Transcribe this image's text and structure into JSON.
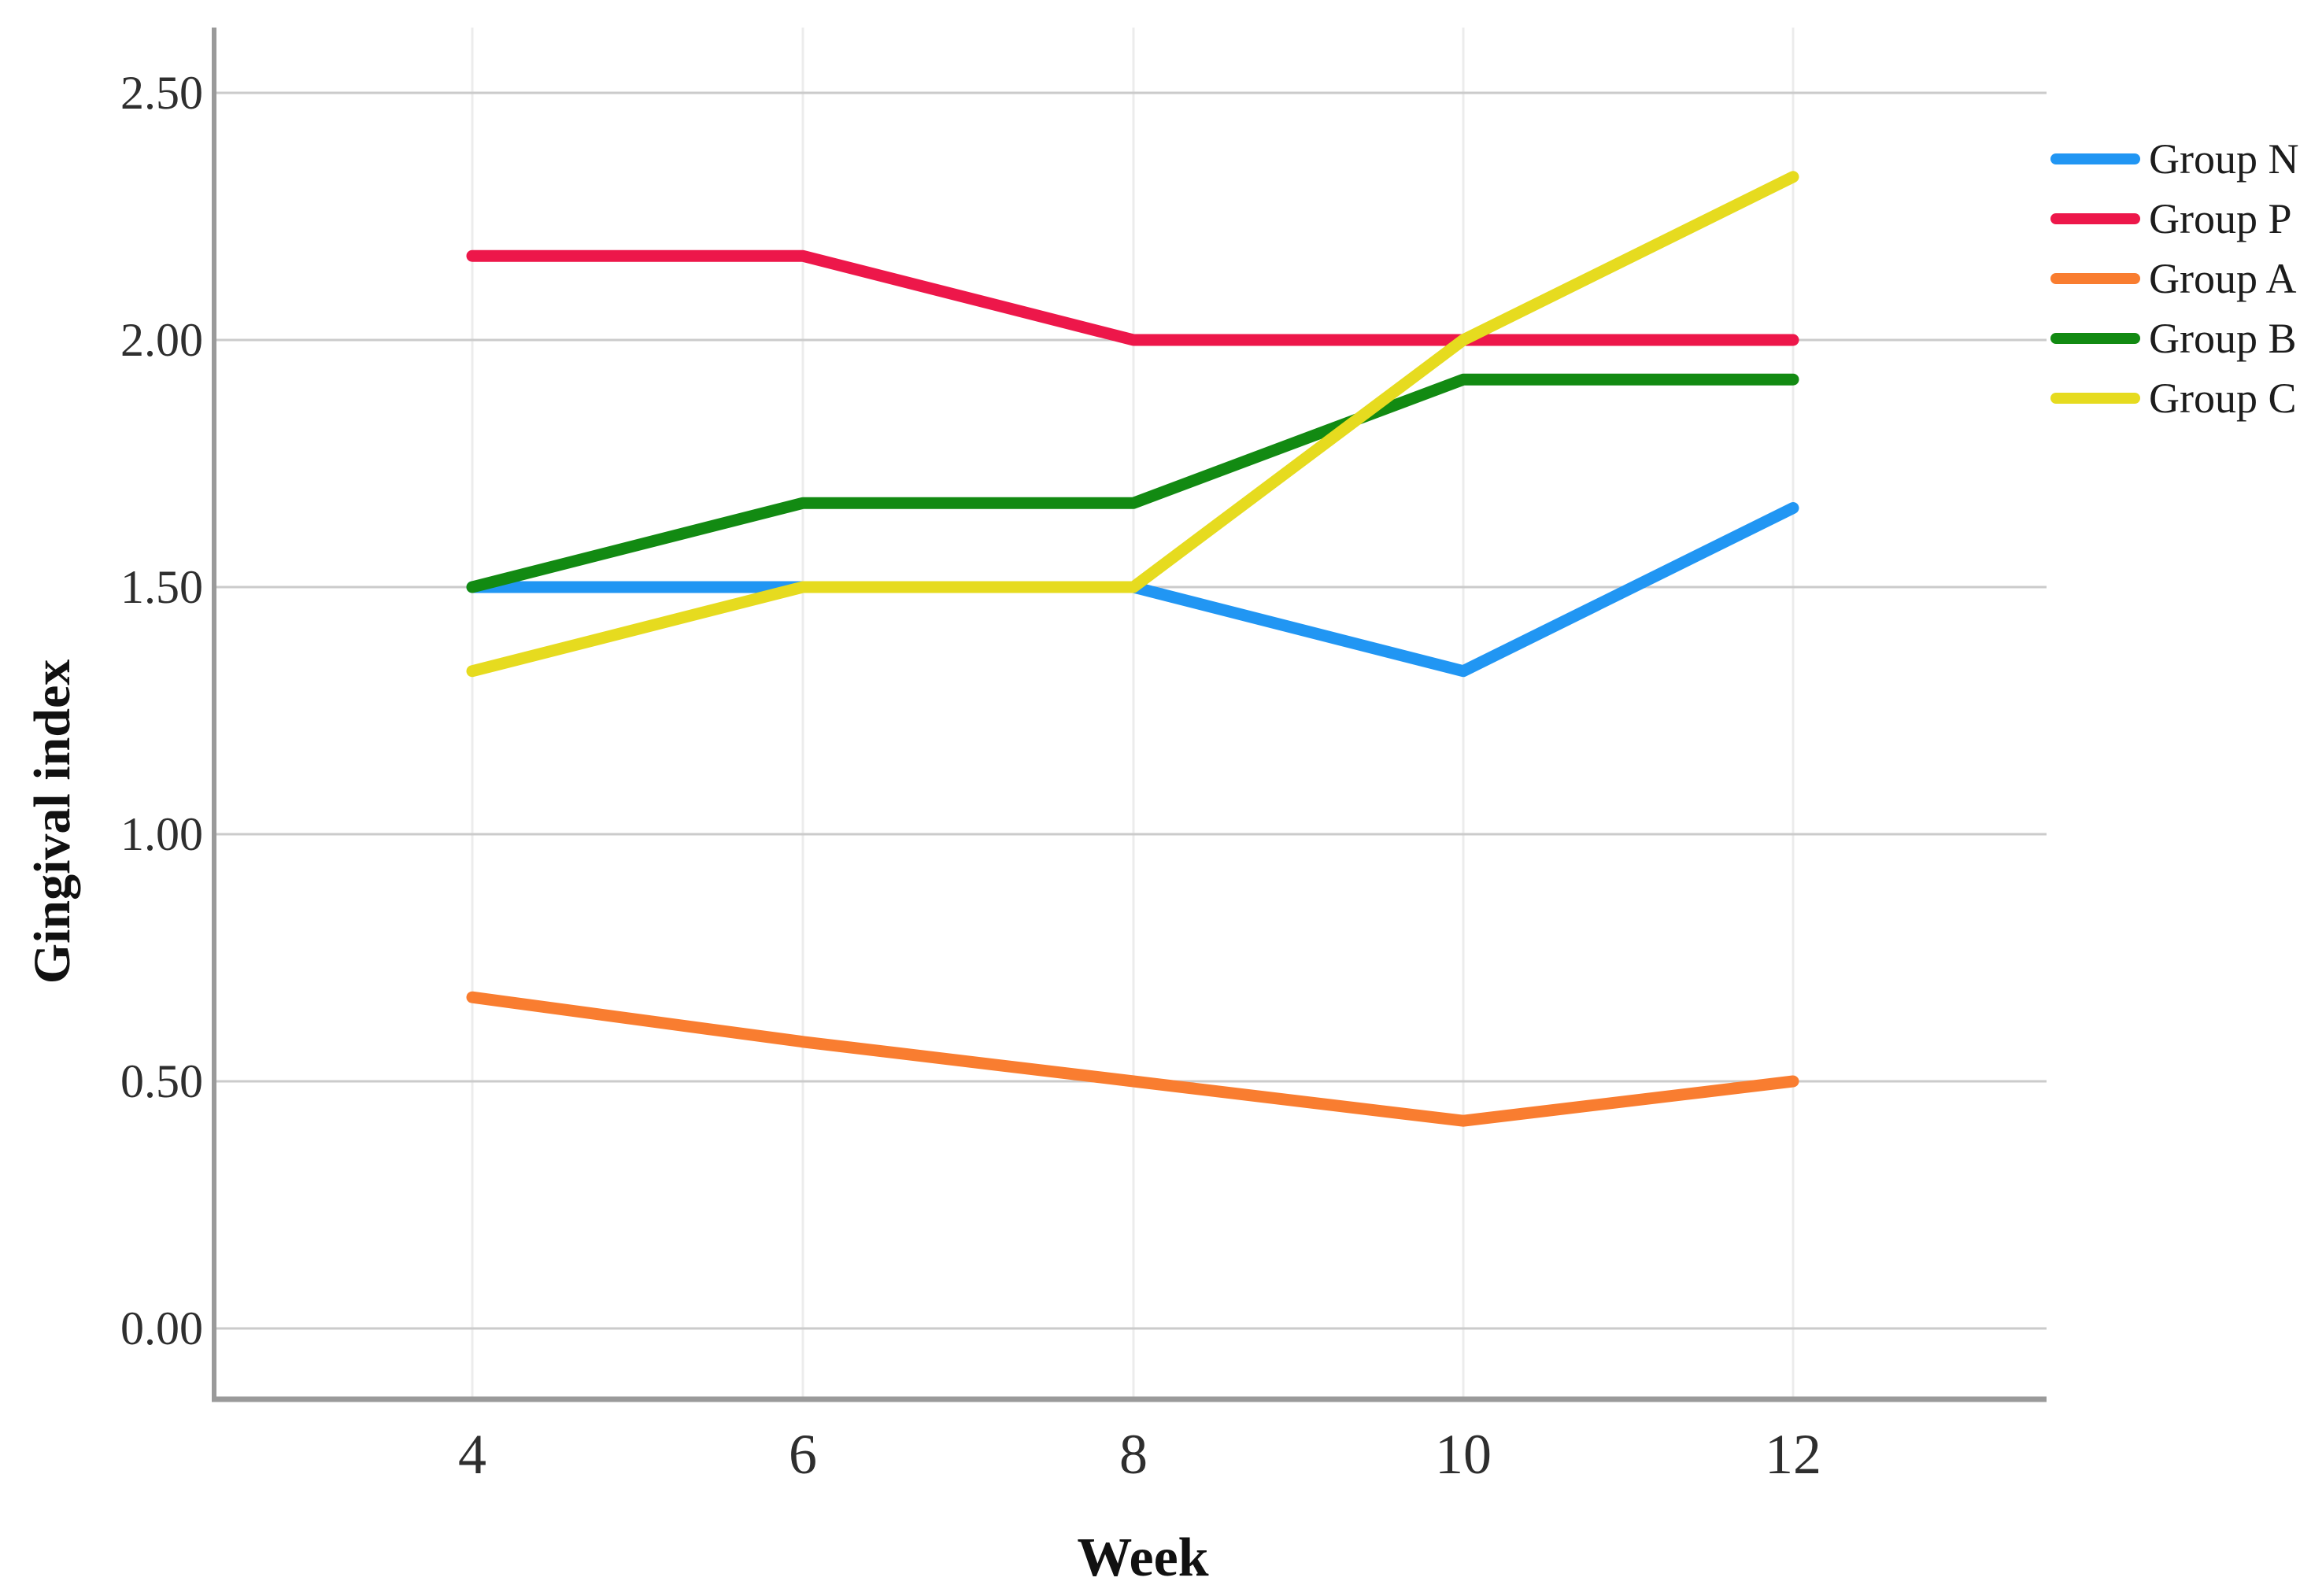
{
  "chart_data": {
    "type": "line",
    "title": "",
    "xlabel": "Week",
    "ylabel": "Gingival index",
    "x": [
      4,
      6,
      8,
      10,
      12
    ],
    "xtick_labels": [
      "4",
      "6",
      "8",
      "10",
      "12"
    ],
    "yticks": [
      0.0,
      0.5,
      1.0,
      1.5,
      2.0,
      2.5
    ],
    "ytick_labels": [
      "0.00",
      "0.50",
      "1.00",
      "1.50",
      "2.00",
      "2.50"
    ],
    "ylim": [
      0,
      2.5
    ],
    "grid": "horizontal major gridlines on, faint vertical gridlines at week ticks",
    "legend_position": "right",
    "series": [
      {
        "name": "Group N",
        "color": "#2196F3",
        "values": [
          1.5,
          1.5,
          1.5,
          1.33,
          1.66
        ]
      },
      {
        "name": "Group P",
        "color": "#ED174A",
        "values": [
          2.17,
          2.17,
          2.0,
          2.0,
          2.0
        ]
      },
      {
        "name": "Group A",
        "color": "#F97D30",
        "values": [
          0.67,
          0.58,
          0.5,
          0.42,
          0.5
        ]
      },
      {
        "name": "Group B",
        "color": "#128A12",
        "values": [
          1.5,
          1.67,
          1.67,
          1.92,
          1.92
        ]
      },
      {
        "name": "Group C",
        "color": "#E6DB1F",
        "values": [
          1.33,
          1.5,
          1.5,
          2.0,
          2.33
        ]
      }
    ],
    "colors": {
      "background": "#FFFFFF",
      "grid_major": "#CBCBCB",
      "grid_minor": "#ECECEC",
      "axis": "#9A9A9A",
      "tick_text": "#2E2E2E",
      "title_text": "#111111"
    }
  }
}
